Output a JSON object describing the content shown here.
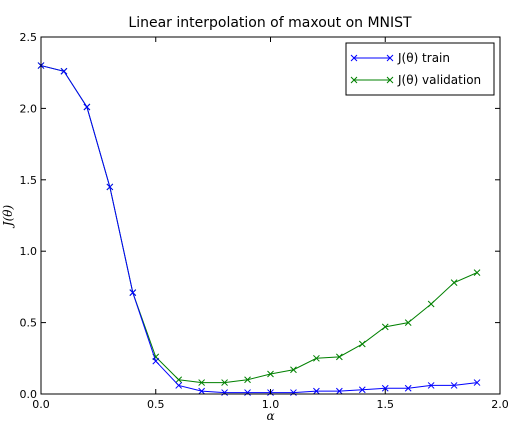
{
  "chart_data": {
    "type": "line",
    "title": "Linear interpolation of maxout on MNIST",
    "xlabel": "α",
    "ylabel": "J(θ)",
    "xlim": [
      0.0,
      2.0
    ],
    "ylim": [
      0.0,
      2.5
    ],
    "xticks": [
      "0.0",
      "0.5",
      "1.0",
      "1.5",
      "2.0"
    ],
    "yticks": [
      "0.0",
      "0.5",
      "1.0",
      "1.5",
      "2.0",
      "2.5"
    ],
    "grid": false,
    "legend_position": "top-right",
    "x": [
      0.0,
      0.1,
      0.2,
      0.3,
      0.4,
      0.5,
      0.6,
      0.7,
      0.8,
      0.9,
      1.0,
      1.1,
      1.2,
      1.3,
      1.4,
      1.5,
      1.6,
      1.7,
      1.8,
      1.9
    ],
    "series": [
      {
        "name": "J(θ) train",
        "color": "#0000ff",
        "marker": "x",
        "values": [
          2.3,
          2.26,
          2.01,
          1.45,
          0.71,
          0.23,
          0.06,
          0.02,
          0.01,
          0.01,
          0.01,
          0.01,
          0.02,
          0.02,
          0.03,
          0.04,
          0.04,
          0.06,
          0.06,
          0.08
        ]
      },
      {
        "name": "J(θ) validation",
        "color": "#008000",
        "marker": "x",
        "values": [
          2.3,
          2.26,
          2.01,
          1.45,
          0.71,
          0.26,
          0.1,
          0.08,
          0.08,
          0.1,
          0.14,
          0.17,
          0.25,
          0.26,
          0.35,
          0.47,
          0.5,
          0.63,
          0.78,
          0.85
        ]
      }
    ]
  }
}
